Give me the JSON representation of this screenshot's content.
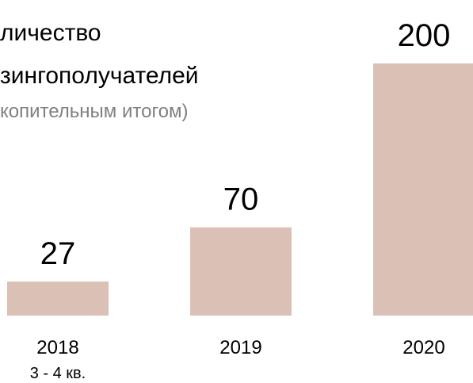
{
  "chart_data": {
    "type": "bar",
    "title": [
      "личество",
      "зингополучателей"
    ],
    "subtitle": "копительным итогом)",
    "categories": [
      "2018",
      "2019",
      "2020"
    ],
    "annotations": [
      "3 - 4 кв."
    ],
    "values": [
      27,
      70,
      200
    ],
    "color": "#dbc1b5",
    "ylim": [
      0,
      200
    ]
  }
}
